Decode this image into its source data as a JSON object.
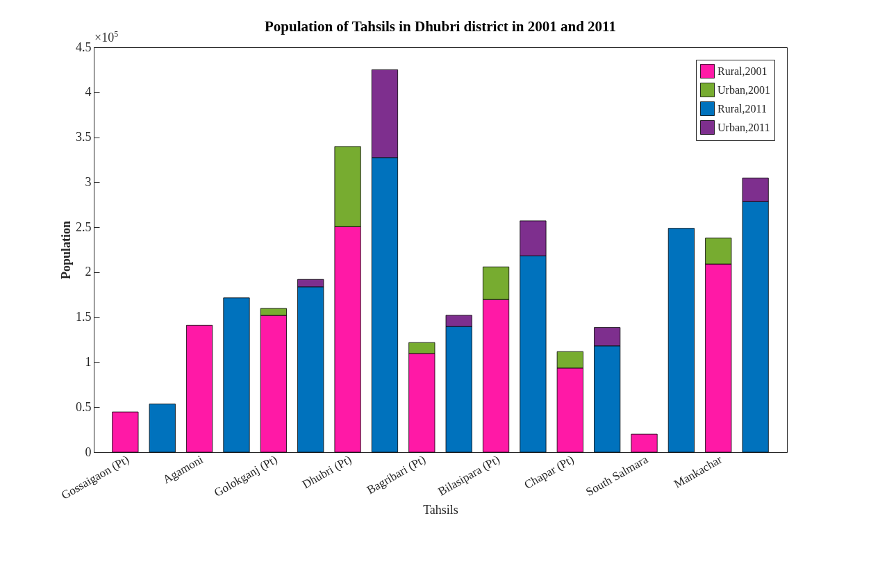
{
  "chart_data": {
    "type": "bar",
    "title": "Population of Tahsils in Dhubri district in 2001 and 2011",
    "xlabel": "Tahsils",
    "ylabel": "Population",
    "stacked": true,
    "categories": [
      "Gossaigaon (Pt)",
      null,
      "Agamoni",
      null,
      "Golokganj (Pt)",
      null,
      "Dhubri (Pt)",
      null,
      "Bagribari (Pt)",
      null,
      "Bilasipara (Pt)",
      null,
      "Chapar (Pt)",
      null,
      "South Salmara",
      null,
      "Mankachar",
      null
    ],
    "series": [
      {
        "name": "Rural,2001",
        "color": "#ff19a6",
        "values": [
          0.447,
          null,
          1.41,
          null,
          1.52,
          null,
          2.506,
          null,
          1.097,
          null,
          1.697,
          null,
          0.935,
          null,
          0.2,
          null,
          2.091,
          null
        ]
      },
      {
        "name": "Urban,2001",
        "color": "#77ac30",
        "values": [
          null,
          null,
          null,
          null,
          0.077,
          null,
          0.891,
          null,
          0.121,
          null,
          0.362,
          null,
          0.183,
          null,
          null,
          null,
          0.288,
          null
        ]
      },
      {
        "name": "Rural,2011",
        "color": "#0072bd",
        "values": [
          null,
          0.535,
          null,
          1.715,
          null,
          1.838,
          null,
          3.274,
          null,
          1.397,
          null,
          2.182,
          null,
          1.182,
          null,
          2.488,
          null,
          2.785
        ]
      },
      {
        "name": "Urban,2011",
        "color": "#7e2f8e",
        "values": [
          null,
          null,
          null,
          null,
          null,
          0.082,
          null,
          0.976,
          null,
          0.124,
          null,
          0.389,
          null,
          0.203,
          null,
          null,
          null,
          0.262
        ]
      }
    ],
    "ylim": [
      0,
      4.5
    ],
    "yticks": [
      0,
      0.5,
      1,
      1.5,
      2,
      2.5,
      3,
      3.5,
      4,
      4.5
    ],
    "annotations": [
      "×10$^{5}$"
    ],
    "grid": false,
    "legend": "top right"
  }
}
